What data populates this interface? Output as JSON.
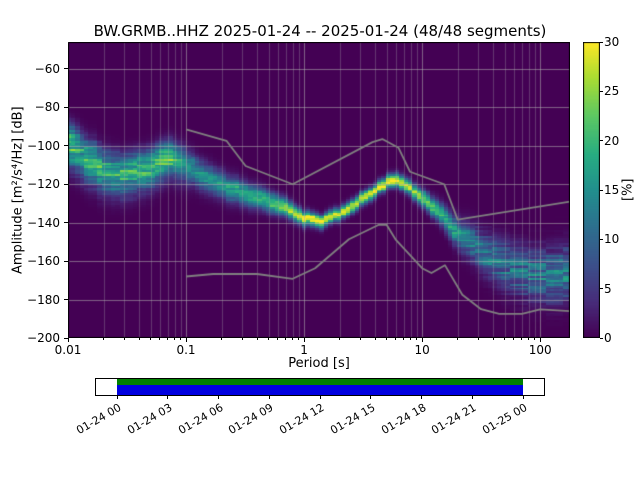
{
  "chart_data": {
    "type": "heatmap",
    "title": "BW.GRMB..HHZ   2025-01-24 -- 2025-01-24  (48/48 segments)",
    "xlabel": "Period [s]",
    "ylabel": "Amplitude [m²/s⁴/Hz] [dB]",
    "xscale": "log",
    "xlim": [
      0.01,
      179
    ],
    "ylim_db": [
      -200,
      -46
    ],
    "grid": true,
    "background": "#440154",
    "xticks": [
      {
        "v": 0.01,
        "label": "0.01"
      },
      {
        "v": 0.1,
        "label": "0.1"
      },
      {
        "v": 1,
        "label": "1"
      },
      {
        "v": 10,
        "label": "10"
      },
      {
        "v": 100,
        "label": "100"
      }
    ],
    "yticks": [
      {
        "v": -60,
        "label": "−60"
      },
      {
        "v": -80,
        "label": "−80"
      },
      {
        "v": -100,
        "label": "−100"
      },
      {
        "v": -120,
        "label": "−120"
      },
      {
        "v": -140,
        "label": "−140"
      },
      {
        "v": -160,
        "label": "−160"
      },
      {
        "v": -180,
        "label": "−180"
      },
      {
        "v": -200,
        "label": "−200"
      }
    ],
    "colorbar": {
      "min": 0,
      "max": 30,
      "label": "[%]",
      "ticks": [
        {
          "v": 0,
          "label": "0"
        },
        {
          "v": 5,
          "label": "5"
        },
        {
          "v": 10,
          "label": "10"
        },
        {
          "v": 15,
          "label": "15"
        },
        {
          "v": 20,
          "label": "20"
        },
        {
          "v": 25,
          "label": "25"
        },
        {
          "v": 30,
          "label": "30"
        }
      ]
    },
    "colormap": {
      "name": "viridis",
      "stops": [
        [
          0.0,
          "#440154"
        ],
        [
          0.12,
          "#472c7a"
        ],
        [
          0.25,
          "#3b518b"
        ],
        [
          0.38,
          "#2c718e"
        ],
        [
          0.5,
          "#21908d"
        ],
        [
          0.62,
          "#27ad81"
        ],
        [
          0.75,
          "#5cc863"
        ],
        [
          0.88,
          "#aadc32"
        ],
        [
          1.0,
          "#fde725"
        ]
      ]
    },
    "ridge": {
      "comment_units": "probability ridge of the PPSD: period [s], mode PSD [dB], gaussian spread [dB], peak probability [%]",
      "periods": [
        0.01,
        0.013,
        0.02,
        0.03,
        0.05,
        0.07,
        0.09,
        0.12,
        0.2,
        0.3,
        0.5,
        0.7,
        1.0,
        1.4,
        2.0,
        3.0,
        4.0,
        5.5,
        7.0,
        10,
        14,
        20,
        30,
        50,
        70,
        100,
        140,
        179
      ],
      "mode_db": [
        -100,
        -105,
        -113,
        -115.5,
        -111,
        -106,
        -109,
        -113,
        -120,
        -124.5,
        -128.5,
        -132.5,
        -137.5,
        -139,
        -135,
        -128,
        -122.5,
        -117.5,
        -119.5,
        -126.5,
        -134.5,
        -145,
        -153.5,
        -162,
        -166,
        -167.5,
        -167,
        -166
      ],
      "spread_db": [
        6,
        6,
        6,
        5.5,
        5,
        4.5,
        5,
        5,
        4.5,
        4,
        3.5,
        3,
        2.4,
        2.2,
        2.2,
        2.2,
        2.2,
        2.2,
        2.4,
        2.8,
        3.5,
        5,
        6.5,
        8,
        8.5,
        8.5,
        9,
        9
      ],
      "peak_percent": [
        18,
        15,
        15,
        16,
        18,
        22,
        16,
        15,
        16,
        18,
        20,
        24,
        30,
        30,
        28,
        28,
        30,
        30,
        28,
        24,
        20,
        15,
        12,
        11,
        11,
        12,
        12,
        12
      ]
    },
    "noise_models": {
      "color": "#808080",
      "high": [
        [
          0.1,
          -91.5
        ],
        [
          0.22,
          -97.4
        ],
        [
          0.32,
          -110.5
        ],
        [
          0.8,
          -120
        ],
        [
          3.8,
          -98.1
        ],
        [
          4.6,
          -96.5
        ],
        [
          6.3,
          -101
        ],
        [
          7.9,
          -113.5
        ],
        [
          15.4,
          -120
        ],
        [
          20,
          -138.4
        ],
        [
          179,
          -129
        ]
      ],
      "low": [
        [
          0.1,
          -168
        ],
        [
          0.17,
          -166.7
        ],
        [
          0.4,
          -166.7
        ],
        [
          0.8,
          -169.2
        ],
        [
          1.24,
          -163.7
        ],
        [
          2.4,
          -148.6
        ],
        [
          4.3,
          -141.1
        ],
        [
          5,
          -141.1
        ],
        [
          6,
          -149
        ],
        [
          10,
          -163.7
        ],
        [
          12,
          -166.2
        ],
        [
          15.6,
          -162.1
        ],
        [
          21.9,
          -177.5
        ],
        [
          31.6,
          -185
        ],
        [
          45,
          -187.5
        ],
        [
          70,
          -187.5
        ],
        [
          100,
          -185.1
        ],
        [
          179,
          -186
        ]
      ]
    }
  },
  "timeline": {
    "labels": [
      "01-24 00",
      "01-24 03",
      "01-24 06",
      "01-24 09",
      "01-24 12",
      "01-24 15",
      "01-24 18",
      "01-24 21",
      "01-25 00"
    ],
    "colors": {
      "green": "#008000",
      "blue": "#0000e0"
    }
  }
}
